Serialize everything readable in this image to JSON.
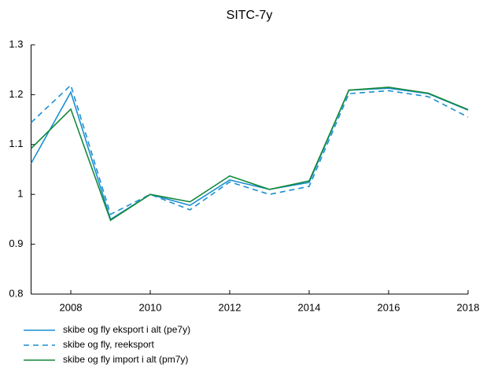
{
  "chart_data": {
    "type": "line",
    "title": "SITC-7y",
    "x": [
      2007,
      2008,
      2009,
      2010,
      2011,
      2012,
      2013,
      2014,
      2015,
      2016,
      2017,
      2018
    ],
    "series": [
      {
        "name": "skibe og fly eksport i alt (pe7y)",
        "color": "#1a8fd1",
        "linestyle": "solid",
        "values": [
          1.062,
          1.205,
          0.95,
          1.0,
          0.978,
          1.029,
          1.01,
          1.024,
          1.209,
          1.213,
          1.202,
          1.169
        ]
      },
      {
        "name": "skibe og fly, reeksport",
        "color": "#1a8fd1",
        "linestyle": "dashed",
        "values": [
          1.144,
          1.219,
          0.96,
          1.0,
          0.969,
          1.025,
          1.0,
          1.016,
          1.202,
          1.208,
          1.196,
          1.155
        ]
      },
      {
        "name": "skibe og fly import i alt (pm7y)",
        "color": "#13883a",
        "linestyle": "solid",
        "values": [
          1.092,
          1.171,
          0.948,
          1.0,
          0.985,
          1.037,
          1.01,
          1.027,
          1.209,
          1.215,
          1.203,
          1.17
        ]
      }
    ],
    "xlim": [
      2007,
      2018
    ],
    "xticks": [
      2008,
      2010,
      2012,
      2014,
      2016,
      2018
    ],
    "ylim": [
      0.8,
      1.3
    ],
    "yticks": [
      0.8,
      0.9,
      1,
      1.1,
      1.2,
      1.3
    ],
    "grid": false,
    "legend": "bottom-left"
  }
}
